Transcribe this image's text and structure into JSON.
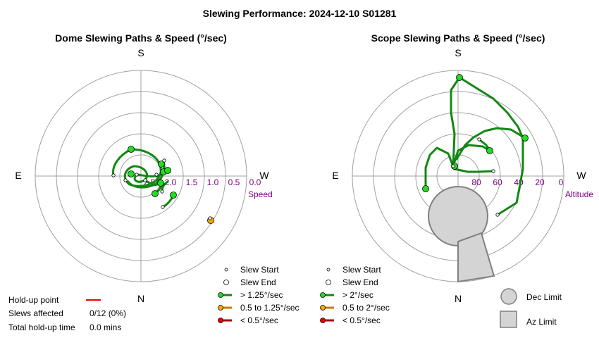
{
  "title": "Slewing Performance: 2024-12-10 S01281",
  "compass": {
    "top": "S",
    "bottom": "N",
    "left": "E",
    "right": "W"
  },
  "chart_data": [
    {
      "type": "polar",
      "title": "Dome Slewing Paths & Speed (°/sec)",
      "radial_label": "Speed",
      "radial_ticks": [
        "2.5",
        "2.0",
        "1.5",
        "1.0",
        "0.5",
        "0.0"
      ],
      "radial_range": [
        2.5,
        0.0
      ],
      "grid": true
    },
    {
      "type": "polar",
      "title": "Scope Slewing Paths & Speed (°/sec)",
      "radial_label": "Altitude",
      "radial_ticks": [
        "80",
        "60",
        "40",
        "20",
        "0"
      ],
      "radial_range": [
        90,
        0
      ],
      "grid": true
    }
  ],
  "dome_legend": [
    {
      "label": "Slew Start",
      "kind": "start"
    },
    {
      "label": "Slew End",
      "kind": "end"
    },
    {
      "label": "> 1.25°/sec",
      "kind": "line",
      "color": "#118811",
      "dot": "#22dd22"
    },
    {
      "label": "0.5 to 1.25°/sec",
      "kind": "line",
      "color": "#cc7a00",
      "dot": "#ffaa00"
    },
    {
      "label": "< 0.5°/sec",
      "kind": "line",
      "color": "#aa0000",
      "dot": "#ee0000"
    }
  ],
  "scope_legend": [
    {
      "label": "Slew Start",
      "kind": "start"
    },
    {
      "label": "Slew End",
      "kind": "end"
    },
    {
      "label": "> 2°/sec",
      "kind": "line",
      "color": "#118811",
      "dot": "#22dd22"
    },
    {
      "label": "0.5 to 2°/sec",
      "kind": "line",
      "color": "#cc7a00",
      "dot": "#ffaa00"
    },
    {
      "label": "< 0.5°/sec",
      "kind": "line",
      "color": "#aa0000",
      "dot": "#ee0000"
    }
  ],
  "limits_legend": {
    "dec": "Dec Limit",
    "az": "Az Limit"
  },
  "holdup": {
    "point_label": "Hold-up point",
    "line_color": "#ee0000",
    "slews_label": "Slews affected",
    "slews_value": "0/12 (0%)",
    "time_label": "Total hold-up time",
    "time_value": "0.0 mins"
  }
}
